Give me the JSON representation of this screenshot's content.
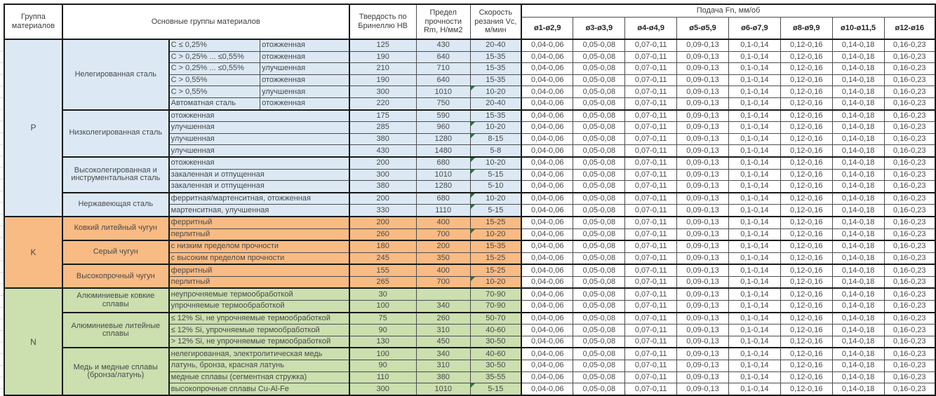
{
  "header": {
    "col_group": "Группа материалов",
    "col_main": "Основные группы материалов",
    "col_hb": "Твердость по Бринеллю HB",
    "col_rm": "Предел прочности Rm, Н/мм2",
    "col_vc": "Скорость резания Vc, м/мин",
    "feed_title": "Подача Fn, мм/об",
    "feed_cols": [
      "ø1-ø2,9",
      "ø3-ø3,9",
      "ø4-ø4,9",
      "ø5-ø5,9",
      "ø6-ø7,9",
      "ø8-ø9,9",
      "ø10-ø11,5",
      "ø12-ø16"
    ]
  },
  "feed_values": [
    "0,04-0,06",
    "0,05-0,08",
    "0,07-0,11",
    "0,09-0,13",
    "0,1-0,14",
    "0,12-0,16",
    "0,14-0,18",
    "0,16-0,23"
  ],
  "colors": {
    "group_p": "#DCE9F5",
    "group_k": "#F9BB84",
    "group_n": "#CBDFAF",
    "error_indicator": "#1e7a36"
  },
  "groups": [
    {
      "code": "P",
      "color": "#DCE9F5",
      "families": [
        {
          "name": "Нелегированная сталь",
          "rows": [
            {
              "sub": "C ≤ 0,25%",
              "treat": "отожженная",
              "hb": "125",
              "rm": "430",
              "vc": "20-40",
              "flag": false
            },
            {
              "sub": "C > 0,25% ... ≤0,55%",
              "treat": "отожженная",
              "hb": "190",
              "rm": "640",
              "vc": "15-35",
              "flag": false
            },
            {
              "sub": "C > 0,25% ... ≤0,55%",
              "treat": "улучшенная",
              "hb": "210",
              "rm": "710",
              "vc": "15-35",
              "flag": false
            },
            {
              "sub": "C > 0,55%",
              "treat": "отожженная",
              "hb": "190",
              "rm": "640",
              "vc": "15-35",
              "flag": false
            },
            {
              "sub": "C > 0,55%",
              "treat": "улучшенная",
              "hb": "300",
              "rm": "1010",
              "vc": "10-20",
              "flag": true
            },
            {
              "sub": "Автоматная сталь",
              "treat": "отожженная",
              "hb": "220",
              "rm": "750",
              "vc": "20-40",
              "flag": false
            }
          ]
        },
        {
          "name": "Низколегированная сталь",
          "rows": [
            {
              "sub": "отожженная",
              "hb": "175",
              "rm": "590",
              "vc": "15-35",
              "flag": false
            },
            {
              "sub": "улучшенная",
              "hb": "285",
              "rm": "960",
              "vc": "10-20",
              "flag": true
            },
            {
              "sub": "улучшенная",
              "hb": "380",
              "rm": "1280",
              "vc": "8-15",
              "flag": true
            },
            {
              "sub": "улучшенная",
              "hb": "430",
              "rm": "1480",
              "vc": "5-8",
              "flag": false
            }
          ]
        },
        {
          "name": "Высоколегированная и инструментальная сталь",
          "rows": [
            {
              "sub": "отожженная",
              "hb": "200",
              "rm": "680",
              "vc": "10-20",
              "flag": true
            },
            {
              "sub": "закаленная и отпущенная",
              "hb": "300",
              "rm": "1010",
              "vc": "5-15",
              "flag": true
            },
            {
              "sub": "закаленная и отпущенная",
              "hb": "380",
              "rm": "1280",
              "vc": "5-10",
              "flag": false
            }
          ]
        },
        {
          "name": "Нержавеющая сталь",
          "rows": [
            {
              "sub": "ферритная/мартенситная, отожженная",
              "hb": "200",
              "rm": "680",
              "vc": "10-20",
              "flag": true
            },
            {
              "sub": "мартенситная, улучшенная",
              "hb": "330",
              "rm": "1110",
              "vc": "5-15",
              "flag": true
            }
          ]
        }
      ]
    },
    {
      "code": "K",
      "color": "#F9BB84",
      "families": [
        {
          "name": "Ковкий литейный чугун",
          "rows": [
            {
              "sub": "ферритный",
              "hb": "200",
              "rm": "400",
              "vc": "15-25",
              "flag": false
            },
            {
              "sub": "перлитный",
              "hb": "260",
              "rm": "700",
              "vc": "10-20",
              "flag": true
            }
          ]
        },
        {
          "name": "Серый чугун",
          "rows": [
            {
              "sub": "с низким пределом прочности",
              "hb": "180",
              "rm": "200",
              "vc": "15-35",
              "flag": false
            },
            {
              "sub": "с высоким пределом прочности",
              "hb": "245",
              "rm": "350",
              "vc": "15-25",
              "flag": false
            }
          ]
        },
        {
          "name": "Высокопрочный чугун",
          "rows": [
            {
              "sub": "ферритный",
              "hb": "155",
              "rm": "400",
              "vc": "15-25",
              "flag": false
            },
            {
              "sub": "перлитный",
              "hb": "265",
              "rm": "700",
              "vc": "10-20",
              "flag": true
            }
          ]
        }
      ]
    },
    {
      "code": "N",
      "color": "#CBDFAF",
      "families": [
        {
          "name": "Алюминиевые ковкие сплавы",
          "rows": [
            {
              "sub": "неупрочняемые термообработкой",
              "hb": "30",
              "rm": "",
              "vc": "70-90",
              "flag": false
            },
            {
              "sub": "упрочняемые термообработкой",
              "hb": "100",
              "rm": "340",
              "vc": "70-90",
              "flag": false
            }
          ]
        },
        {
          "name": "Алюминиевые литейные сплавы",
          "rows": [
            {
              "sub": "≤ 12% Si, не упрочняемые термообработкой",
              "hb": "75",
              "rm": "260",
              "vc": "50-70",
              "flag": false
            },
            {
              "sub": "≤ 12% Si, упрочняемые термообработкой",
              "hb": "90",
              "rm": "310",
              "vc": "40-60",
              "flag": false
            },
            {
              "sub": "> 12% Si, не упрочняемые термообработкой",
              "hb": "130",
              "rm": "450",
              "vc": "30-50",
              "flag": false
            }
          ]
        },
        {
          "name": "Медь и медные сплавы (бронза/латунь)",
          "rows": [
            {
              "sub": "нелегированная, электролитическая медь",
              "hb": "100",
              "rm": "340",
              "vc": "40-60",
              "flag": false
            },
            {
              "sub": "латунь, бронза, красная латунь",
              "hb": "90",
              "rm": "310",
              "vc": "30-50",
              "flag": false
            },
            {
              "sub": "медные сплавы (сегментная стружка)",
              "hb": "110",
              "rm": "380",
              "vc": "35-55",
              "flag": false
            },
            {
              "sub": "высокопрочные сплавы Cu-Al-Fe",
              "hb": "300",
              "rm": "1010",
              "vc": "5-15",
              "flag": true
            }
          ]
        }
      ]
    }
  ]
}
